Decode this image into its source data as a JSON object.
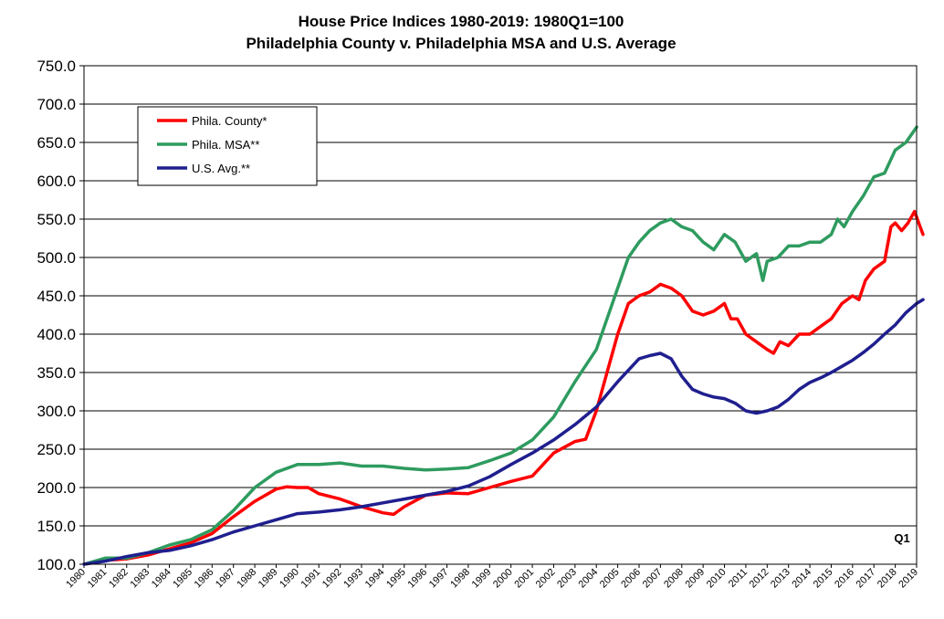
{
  "chart_data": {
    "type": "line",
    "title": "House Price Indices 1980-2019: 1980Q1=100",
    "subtitle": "Philadelphia County v. Philadelphia MSA and U.S. Average",
    "ylim": [
      100,
      750
    ],
    "yticks": [
      "100.0",
      "150.0",
      "200.0",
      "250.0",
      "300.0",
      "350.0",
      "400.0",
      "450.0",
      "500.0",
      "550.0",
      "600.0",
      "650.0",
      "700.0",
      "750.0"
    ],
    "xlim": [
      1980,
      2019
    ],
    "xticks": [
      "1980",
      "1981",
      "1982",
      "1983",
      "1984",
      "1985",
      "1986",
      "1987",
      "1988",
      "1989",
      "1990",
      "1991",
      "1992",
      "1993",
      "1994",
      "1995",
      "1996",
      "1997",
      "1998",
      "1999",
      "2000",
      "2001",
      "2002",
      "2003",
      "2004",
      "2005",
      "2006",
      "2007",
      "2008",
      "2009",
      "2010",
      "2011",
      "2012",
      "2013",
      "2014",
      "2015",
      "2016",
      "2017",
      "2018",
      "2019"
    ],
    "grid": "horizontal",
    "legend_position": "top-left",
    "annotation": {
      "text": "Q1",
      "x": 2019
    },
    "series": [
      {
        "name": "Phila. County*",
        "color": "#ff0000",
        "points": [
          [
            1980,
            100
          ],
          [
            1981,
            105
          ],
          [
            1982,
            107
          ],
          [
            1983,
            112
          ],
          [
            1984,
            120
          ],
          [
            1985,
            128
          ],
          [
            1986,
            140
          ],
          [
            1987,
            162
          ],
          [
            1988,
            182
          ],
          [
            1989,
            198
          ],
          [
            1989.5,
            201
          ],
          [
            1990,
            200
          ],
          [
            1990.5,
            200
          ],
          [
            1991,
            192
          ],
          [
            1992,
            185
          ],
          [
            1993,
            175
          ],
          [
            1994,
            167
          ],
          [
            1994.5,
            165
          ],
          [
            1995,
            175
          ],
          [
            1996,
            190
          ],
          [
            1997,
            193
          ],
          [
            1998,
            192
          ],
          [
            1999,
            200
          ],
          [
            2000,
            208
          ],
          [
            2001,
            215
          ],
          [
            2002,
            245
          ],
          [
            2003,
            260
          ],
          [
            2003.5,
            263
          ],
          [
            2004,
            300
          ],
          [
            2004.5,
            350
          ],
          [
            2005,
            400
          ],
          [
            2005.5,
            440
          ],
          [
            2006,
            450
          ],
          [
            2006.5,
            455
          ],
          [
            2007,
            465
          ],
          [
            2007.5,
            460
          ],
          [
            2008,
            450
          ],
          [
            2008.5,
            430
          ],
          [
            2009,
            425
          ],
          [
            2009.5,
            430
          ],
          [
            2010,
            440
          ],
          [
            2010.3,
            420
          ],
          [
            2010.6,
            420
          ],
          [
            2011,
            400
          ],
          [
            2011.5,
            390
          ],
          [
            2012,
            380
          ],
          [
            2012.3,
            375
          ],
          [
            2012.6,
            390
          ],
          [
            2013,
            385
          ],
          [
            2013.5,
            400
          ],
          [
            2014,
            400
          ],
          [
            2014.5,
            410
          ],
          [
            2015,
            420
          ],
          [
            2015.5,
            440
          ],
          [
            2016,
            450
          ],
          [
            2016.3,
            445
          ],
          [
            2016.6,
            470
          ],
          [
            2017,
            485
          ],
          [
            2017.5,
            495
          ],
          [
            2017.8,
            540
          ],
          [
            2018,
            545
          ],
          [
            2018.3,
            535
          ],
          [
            2018.6,
            545
          ],
          [
            2018.9,
            560
          ],
          [
            2019.3,
            530
          ]
        ]
      },
      {
        "name": "Phila. MSA**",
        "color": "#2e9b5f",
        "points": [
          [
            1980,
            100
          ],
          [
            1981,
            108
          ],
          [
            1982,
            108
          ],
          [
            1983,
            115
          ],
          [
            1984,
            125
          ],
          [
            1985,
            132
          ],
          [
            1986,
            145
          ],
          [
            1987,
            170
          ],
          [
            1988,
            200
          ],
          [
            1989,
            220
          ],
          [
            1990,
            230
          ],
          [
            1991,
            230
          ],
          [
            1992,
            232
          ],
          [
            1993,
            228
          ],
          [
            1994,
            228
          ],
          [
            1995,
            225
          ],
          [
            1996,
            223
          ],
          [
            1997,
            224
          ],
          [
            1998,
            226
          ],
          [
            1999,
            235
          ],
          [
            2000,
            245
          ],
          [
            2001,
            262
          ],
          [
            2002,
            292
          ],
          [
            2003,
            338
          ],
          [
            2004,
            380
          ],
          [
            2004.5,
            420
          ],
          [
            2005,
            460
          ],
          [
            2005.5,
            500
          ],
          [
            2006,
            520
          ],
          [
            2006.5,
            535
          ],
          [
            2007,
            545
          ],
          [
            2007.5,
            550
          ],
          [
            2008,
            540
          ],
          [
            2008.5,
            535
          ],
          [
            2009,
            520
          ],
          [
            2009.5,
            510
          ],
          [
            2010,
            530
          ],
          [
            2010.5,
            520
          ],
          [
            2011,
            495
          ],
          [
            2011.5,
            505
          ],
          [
            2011.8,
            470
          ],
          [
            2012,
            495
          ],
          [
            2012.5,
            500
          ],
          [
            2013,
            515
          ],
          [
            2013.5,
            515
          ],
          [
            2014,
            520
          ],
          [
            2014.5,
            520
          ],
          [
            2015,
            530
          ],
          [
            2015.3,
            550
          ],
          [
            2015.6,
            540
          ],
          [
            2016,
            560
          ],
          [
            2016.5,
            580
          ],
          [
            2017,
            605
          ],
          [
            2017.5,
            610
          ],
          [
            2018,
            640
          ],
          [
            2018.5,
            650
          ],
          [
            2019,
            670
          ]
        ]
      },
      {
        "name": "U.S. Avg.**",
        "color": "#1f1f8f",
        "points": [
          [
            1980,
            100
          ],
          [
            1981,
            104
          ],
          [
            1982,
            110
          ],
          [
            1983,
            115
          ],
          [
            1984,
            118
          ],
          [
            1985,
            124
          ],
          [
            1986,
            132
          ],
          [
            1987,
            142
          ],
          [
            1988,
            150
          ],
          [
            1989,
            158
          ],
          [
            1990,
            166
          ],
          [
            1991,
            168
          ],
          [
            1992,
            171
          ],
          [
            1993,
            175
          ],
          [
            1994,
            180
          ],
          [
            1995,
            185
          ],
          [
            1996,
            190
          ],
          [
            1997,
            195
          ],
          [
            1998,
            202
          ],
          [
            1999,
            214
          ],
          [
            2000,
            230
          ],
          [
            2001,
            245
          ],
          [
            2002,
            262
          ],
          [
            2003,
            282
          ],
          [
            2004,
            305
          ],
          [
            2005,
            338
          ],
          [
            2006,
            368
          ],
          [
            2006.5,
            372
          ],
          [
            2007,
            375
          ],
          [
            2007.5,
            368
          ],
          [
            2008,
            345
          ],
          [
            2008.5,
            328
          ],
          [
            2009,
            322
          ],
          [
            2009.5,
            318
          ],
          [
            2010,
            316
          ],
          [
            2010.5,
            310
          ],
          [
            2011,
            300
          ],
          [
            2011.5,
            297
          ],
          [
            2012,
            300
          ],
          [
            2012.5,
            305
          ],
          [
            2013,
            315
          ],
          [
            2013.5,
            328
          ],
          [
            2014,
            337
          ],
          [
            2014.5,
            343
          ],
          [
            2015,
            350
          ],
          [
            2015.5,
            358
          ],
          [
            2016,
            366
          ],
          [
            2016.5,
            376
          ],
          [
            2017,
            387
          ],
          [
            2017.5,
            400
          ],
          [
            2018,
            412
          ],
          [
            2018.5,
            428
          ],
          [
            2019,
            440
          ],
          [
            2019.3,
            445
          ]
        ]
      }
    ]
  }
}
